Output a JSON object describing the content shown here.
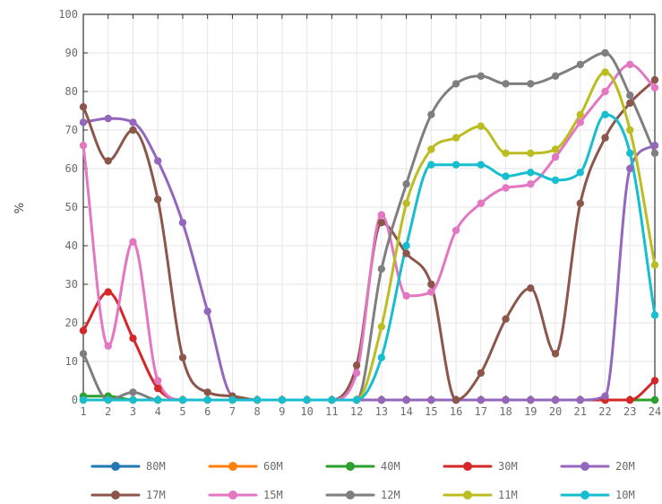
{
  "chart_data": {
    "type": "line",
    "ylabel": "%",
    "xlabel": "",
    "ylim": [
      0,
      100
    ],
    "yticks": [
      0,
      10,
      20,
      30,
      40,
      50,
      60,
      70,
      80,
      90,
      100
    ],
    "x": [
      1,
      2,
      3,
      4,
      5,
      6,
      7,
      8,
      9,
      10,
      11,
      12,
      13,
      14,
      15,
      16,
      17,
      18,
      19,
      20,
      21,
      22,
      23,
      24
    ],
    "grid": true,
    "legend_position": "bottom",
    "series": [
      {
        "name": "80M",
        "color": "#1f77b4",
        "values": [
          0,
          0,
          0,
          0,
          0,
          0,
          0,
          0,
          0,
          0,
          0,
          0,
          0,
          0,
          0,
          0,
          0,
          0,
          0,
          0,
          0,
          0,
          0,
          0
        ]
      },
      {
        "name": "60M",
        "color": "#ff7f0e",
        "values": [
          0,
          0,
          0,
          0,
          0,
          0,
          0,
          0,
          0,
          0,
          0,
          0,
          0,
          0,
          0,
          0,
          0,
          0,
          0,
          0,
          0,
          0,
          0,
          0
        ]
      },
      {
        "name": "40M",
        "color": "#2ca02c",
        "values": [
          1,
          1,
          0,
          0,
          0,
          0,
          0,
          0,
          0,
          0,
          0,
          0,
          0,
          0,
          0,
          0,
          0,
          0,
          0,
          0,
          0,
          0,
          0,
          0
        ]
      },
      {
        "name": "30M",
        "color": "#d62728",
        "values": [
          18,
          28,
          16,
          3,
          0,
          0,
          0,
          0,
          0,
          0,
          0,
          0,
          0,
          0,
          0,
          0,
          0,
          0,
          0,
          0,
          0,
          0,
          0,
          5
        ]
      },
      {
        "name": "20M",
        "color": "#9467bd",
        "values": [
          72,
          73,
          72,
          62,
          46,
          23,
          1,
          0,
          0,
          0,
          0,
          0,
          0,
          0,
          0,
          0,
          0,
          0,
          0,
          0,
          0,
          1,
          60,
          66
        ]
      },
      {
        "name": "17M",
        "color": "#8c564b",
        "values": [
          76,
          62,
          70,
          52,
          11,
          2,
          1,
          0,
          0,
          0,
          0,
          9,
          46,
          38,
          30,
          0,
          7,
          21,
          29,
          12,
          51,
          68,
          77,
          83
        ]
      },
      {
        "name": "15M",
        "color": "#e377c2",
        "values": [
          66,
          14,
          41,
          5,
          0,
          0,
          0,
          0,
          0,
          0,
          0,
          7,
          48,
          27,
          28,
          44,
          51,
          55,
          56,
          63,
          72,
          80,
          87,
          81
        ]
      },
      {
        "name": "12M",
        "color": "#7f7f7f",
        "values": [
          12,
          0,
          2,
          0,
          0,
          0,
          0,
          0,
          0,
          0,
          0,
          0,
          34,
          56,
          74,
          82,
          84,
          82,
          82,
          84,
          87,
          90,
          79,
          64
        ]
      },
      {
        "name": "11M",
        "color": "#bcbd22",
        "values": [
          0,
          0,
          0,
          0,
          0,
          0,
          0,
          0,
          0,
          0,
          0,
          0,
          19,
          51,
          65,
          68,
          71,
          64,
          64,
          65,
          74,
          85,
          70,
          35
        ]
      },
      {
        "name": "10M",
        "color": "#17becf",
        "values": [
          0,
          0,
          0,
          0,
          0,
          0,
          0,
          0,
          0,
          0,
          0,
          0,
          11,
          40,
          61,
          61,
          61,
          58,
          59,
          57,
          59,
          74,
          64,
          22
        ]
      }
    ]
  }
}
